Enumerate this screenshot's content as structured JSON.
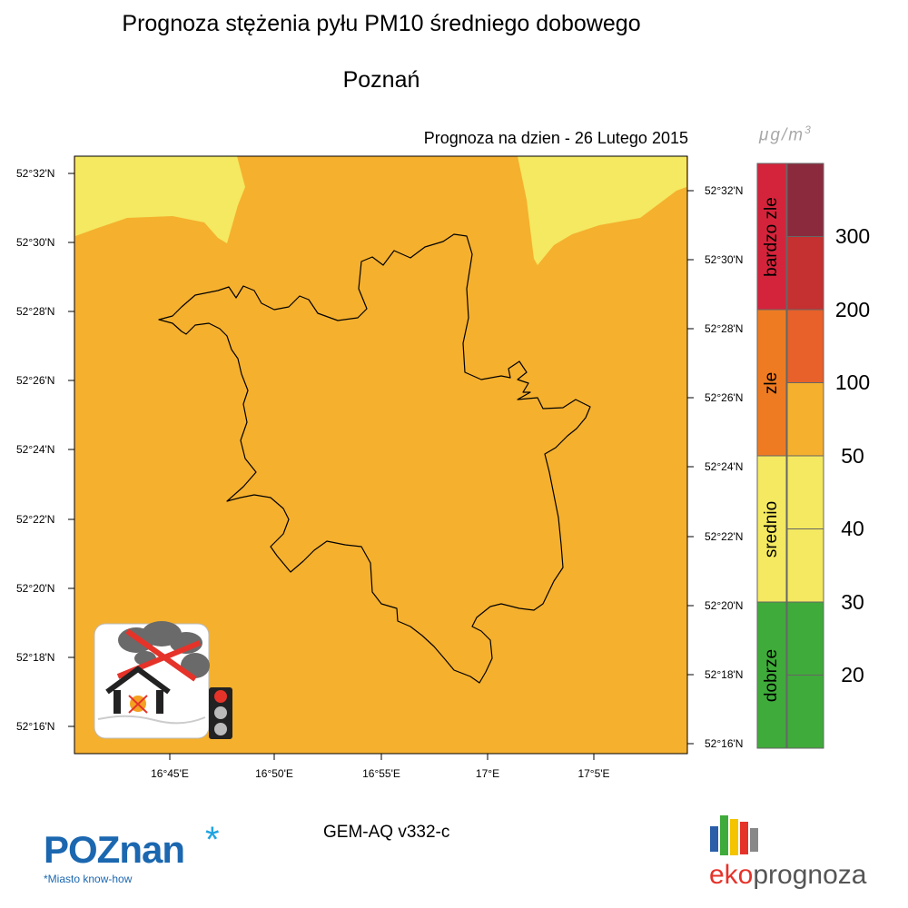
{
  "header": {
    "title": "Prognoza stężenia pyłu PM10 średniego dobowego",
    "city": "Poznań",
    "forecast_date": "Prognoza na dzien -  26 Lutego 2015"
  },
  "map": {
    "left_lat_labels": [
      "52°32'N",
      "52°30'N",
      "52°28'N",
      "52°26'N",
      "52°24'N",
      "52°22'N",
      "52°20'N",
      "52°18'N",
      "52°16'N"
    ],
    "right_lat_labels": [
      "52°32'N",
      "52°30'N",
      "52°28'N",
      "52°26'N",
      "52°24'N",
      "52°22'N",
      "52°20'N",
      "52°18'N",
      "52°16'N"
    ],
    "lon_labels": [
      "16°45'E",
      "16°50'E",
      "16°55'E",
      "17°E",
      "17°5'E"
    ],
    "colors": {
      "background": "#f5b02e",
      "low": "#f4e960",
      "boundary": "#000000"
    }
  },
  "legend": {
    "unit": "μg/m",
    "unit_exp": "3",
    "categories": [
      {
        "label": "bardzo zle",
        "color": "#d4243b"
      },
      {
        "label": "zle",
        "color": "#ee7b22"
      },
      {
        "label": "srednio",
        "color": "#f4e960"
      },
      {
        "label": "dobrze",
        "color": "#3fab3a"
      }
    ],
    "scale_colors": [
      "#8b2a3d",
      "#c53030",
      "#e8602a",
      "#f5b02e",
      "#f4e960",
      "#f4e960",
      "#3fab3a",
      "#3fab3a"
    ],
    "levels": [
      "300",
      "200",
      "100",
      "50",
      "40",
      "30",
      "20"
    ]
  },
  "footer": {
    "model": "GEM-AQ v332-c",
    "poznan_logo_main": "POZnan",
    "poznan_logo_tagline": "*Miasto know-how",
    "eko_a": "eko",
    "eko_b": "prognoza",
    "eko_bar_colors": [
      "#2a5ea8",
      "#3fab3a",
      "#f4c400",
      "#e5332a",
      "#888888"
    ]
  }
}
